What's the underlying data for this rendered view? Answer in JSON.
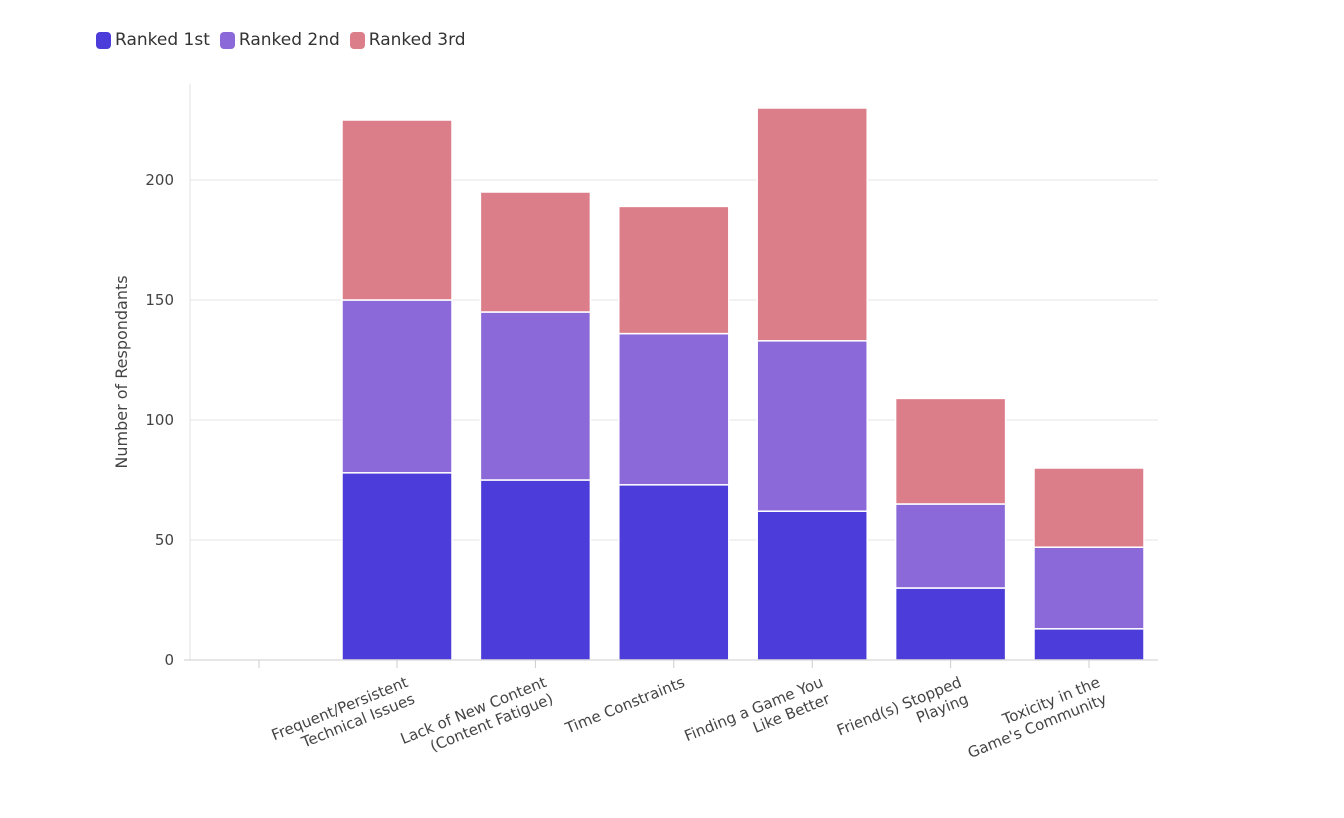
{
  "chart_data": {
    "type": "bar",
    "stacked": true,
    "title": "",
    "xlabel": "",
    "ylabel": "Number of Respondants",
    "ylim": [
      0,
      240
    ],
    "yticks": [
      0,
      50,
      100,
      150,
      200
    ],
    "grid": true,
    "legend_position": "top-left",
    "categories": [
      [
        "Frequent/Persistent",
        "Technical Issues"
      ],
      [
        "Lack of New Content",
        "(Content Fatigue)"
      ],
      [
        "Time Constraints"
      ],
      [
        "Finding a Game You",
        "Like Better"
      ],
      [
        "Friend(s) Stopped",
        "Playing"
      ],
      [
        "Toxicity in the",
        "Game's Community"
      ]
    ],
    "series": [
      {
        "name": "Ranked 1st",
        "color": "#4c3cd9",
        "values": [
          78,
          75,
          73,
          62,
          30,
          13
        ]
      },
      {
        "name": "Ranked 2nd",
        "color": "#8c69d9",
        "values": [
          72,
          70,
          63,
          71,
          35,
          34
        ]
      },
      {
        "name": "Ranked 3rd",
        "color": "#dc7d8a",
        "values": [
          75,
          50,
          53,
          97,
          44,
          33
        ]
      }
    ]
  }
}
